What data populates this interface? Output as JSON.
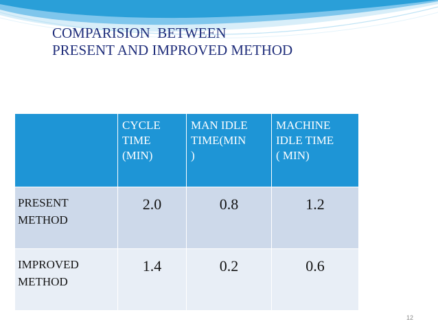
{
  "title_lines": [
    "COMPARISION  BETWEEN",
    "PRESENT AND IMPROVED METHOD"
  ],
  "table": {
    "headers": [
      "",
      "CYCLE\nTIME\n(MIN)",
      "MAN IDLE\nTIME(MIN\n)",
      "MACHINE\nIDLE TIME\n( MIN)"
    ],
    "rows": [
      {
        "label": "PRESENT\nMETHOD",
        "values": [
          "2.0",
          "0.8",
          "1.2"
        ]
      },
      {
        "label": "IMPROVED\nMETHOD",
        "values": [
          "1.4",
          "0.2",
          "0.6"
        ]
      }
    ]
  },
  "page_number": "12",
  "colors": {
    "title": "#1f2d7a",
    "header_bg": "#1e95d6",
    "row1_bg": "#cdd9ea",
    "row2_bg": "#e8eef6",
    "swoosh": "#2a9fd8"
  }
}
